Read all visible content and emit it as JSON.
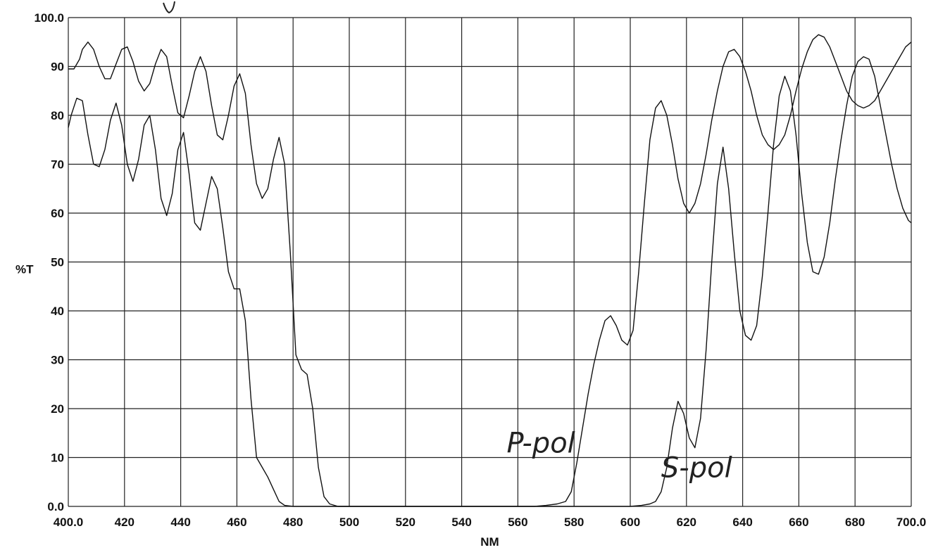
{
  "chart_data": {
    "type": "line",
    "xlabel": "NM",
    "ylabel": "%T",
    "xlim": [
      400,
      700
    ],
    "ylim": [
      0,
      100
    ],
    "grid": true,
    "x_ticks": [
      "400.0",
      "420",
      "440",
      "460",
      "480",
      "500",
      "520",
      "540",
      "560",
      "580",
      "600",
      "620",
      "640",
      "660",
      "680",
      "700.0"
    ],
    "y_ticks": [
      "0.0",
      "10",
      "20",
      "30",
      "40",
      "50",
      "60",
      "70",
      "80",
      "90",
      "100.0"
    ],
    "annotations": [
      {
        "text": "P-pol",
        "x": 556,
        "y": 11
      },
      {
        "text": "S-pol",
        "x": 611,
        "y": 6
      }
    ],
    "series": [
      {
        "name": "P-pol",
        "points": [
          [
            400,
            89.5
          ],
          [
            402,
            89.5
          ],
          [
            404,
            91.5
          ],
          [
            405,
            93.5
          ],
          [
            407,
            95
          ],
          [
            409,
            93.5
          ],
          [
            411,
            90
          ],
          [
            413,
            87.5
          ],
          [
            415,
            87.5
          ],
          [
            417,
            90.5
          ],
          [
            419,
            93.5
          ],
          [
            421,
            94
          ],
          [
            423,
            91
          ],
          [
            425,
            87
          ],
          [
            427,
            85
          ],
          [
            429,
            86.5
          ],
          [
            431,
            90.5
          ],
          [
            433,
            93.5
          ],
          [
            435,
            92
          ],
          [
            437,
            86
          ],
          [
            439,
            80.5
          ],
          [
            441,
            79.5
          ],
          [
            443,
            84
          ],
          [
            445,
            89
          ],
          [
            447,
            92
          ],
          [
            449,
            89
          ],
          [
            451,
            82
          ],
          [
            453,
            76
          ],
          [
            455,
            75
          ],
          [
            457,
            80
          ],
          [
            459,
            86
          ],
          [
            461,
            88.5
          ],
          [
            463,
            84.5
          ],
          [
            465,
            74
          ],
          [
            467,
            66
          ],
          [
            469,
            63
          ],
          [
            471,
            65
          ],
          [
            473,
            71
          ],
          [
            475,
            75.5
          ],
          [
            477,
            70
          ],
          [
            479,
            52
          ],
          [
            481,
            31
          ],
          [
            483,
            28
          ],
          [
            485,
            27
          ],
          [
            487,
            20
          ],
          [
            489,
            8
          ],
          [
            491,
            2
          ],
          [
            493,
            0.5
          ],
          [
            496,
            0
          ],
          [
            500,
            0
          ],
          [
            560,
            0
          ],
          [
            566,
            0
          ],
          [
            570,
            0.2
          ],
          [
            574,
            0.5
          ],
          [
            577,
            1
          ],
          [
            579,
            3
          ],
          [
            581,
            9
          ],
          [
            583,
            16
          ],
          [
            585,
            23
          ],
          [
            587,
            29
          ],
          [
            589,
            34
          ],
          [
            591,
            38
          ],
          [
            593,
            39
          ],
          [
            595,
            37
          ],
          [
            597,
            34
          ],
          [
            599,
            33
          ],
          [
            601,
            36
          ],
          [
            603,
            48
          ],
          [
            605,
            62
          ],
          [
            607,
            75
          ],
          [
            609,
            81.5
          ],
          [
            611,
            83
          ],
          [
            613,
            80
          ],
          [
            615,
            74
          ],
          [
            617,
            67
          ],
          [
            619,
            62
          ],
          [
            621,
            60
          ],
          [
            623,
            62
          ],
          [
            625,
            66
          ],
          [
            627,
            72
          ],
          [
            629,
            79
          ],
          [
            631,
            85
          ],
          [
            633,
            90
          ],
          [
            635,
            93
          ],
          [
            637,
            93.5
          ],
          [
            639,
            92
          ],
          [
            641,
            89
          ],
          [
            643,
            85
          ],
          [
            645,
            80
          ],
          [
            647,
            76
          ],
          [
            649,
            74
          ],
          [
            651,
            73
          ],
          [
            653,
            74
          ],
          [
            655,
            76
          ],
          [
            657,
            80
          ],
          [
            659,
            85
          ],
          [
            661,
            89.5
          ],
          [
            663,
            93
          ],
          [
            665,
            95.5
          ],
          [
            667,
            96.5
          ],
          [
            669,
            96
          ],
          [
            671,
            94
          ],
          [
            673,
            91
          ],
          [
            675,
            88
          ],
          [
            677,
            85
          ],
          [
            679,
            83
          ],
          [
            681,
            82
          ],
          [
            683,
            81.5
          ],
          [
            685,
            82
          ],
          [
            687,
            83
          ],
          [
            689,
            85
          ],
          [
            692,
            88
          ],
          [
            695,
            91
          ],
          [
            698,
            94
          ],
          [
            700,
            95
          ]
        ]
      },
      {
        "name": "S-pol",
        "points": [
          [
            400,
            77.5
          ],
          [
            401,
            80
          ],
          [
            403,
            83.5
          ],
          [
            405,
            83
          ],
          [
            407,
            76
          ],
          [
            409,
            70
          ],
          [
            411,
            69.5
          ],
          [
            413,
            73
          ],
          [
            415,
            79
          ],
          [
            417,
            82.5
          ],
          [
            419,
            78
          ],
          [
            421,
            70
          ],
          [
            423,
            66.5
          ],
          [
            425,
            71
          ],
          [
            427,
            78
          ],
          [
            429,
            80
          ],
          [
            431,
            73
          ],
          [
            433,
            63
          ],
          [
            435,
            59.5
          ],
          [
            437,
            64
          ],
          [
            439,
            73
          ],
          [
            441,
            76.5
          ],
          [
            443,
            68
          ],
          [
            445,
            58
          ],
          [
            447,
            56.5
          ],
          [
            449,
            62
          ],
          [
            451,
            67.5
          ],
          [
            453,
            65
          ],
          [
            455,
            57
          ],
          [
            457,
            48
          ],
          [
            459,
            44.5
          ],
          [
            461,
            44.5
          ],
          [
            463,
            38
          ],
          [
            465,
            22
          ],
          [
            467,
            10
          ],
          [
            469,
            8
          ],
          [
            471,
            6
          ],
          [
            473,
            3.5
          ],
          [
            475,
            1
          ],
          [
            477,
            0.2
          ],
          [
            480,
            0
          ],
          [
            500,
            0
          ],
          [
            600,
            0
          ],
          [
            604,
            0.2
          ],
          [
            607,
            0.5
          ],
          [
            609,
            1
          ],
          [
            611,
            3
          ],
          [
            613,
            8
          ],
          [
            615,
            16
          ],
          [
            617,
            21.5
          ],
          [
            619,
            19
          ],
          [
            621,
            14
          ],
          [
            623,
            12
          ],
          [
            625,
            18
          ],
          [
            627,
            32
          ],
          [
            629,
            50
          ],
          [
            631,
            66
          ],
          [
            633,
            73.5
          ],
          [
            635,
            65
          ],
          [
            637,
            52
          ],
          [
            639,
            40
          ],
          [
            641,
            35
          ],
          [
            643,
            34
          ],
          [
            645,
            37
          ],
          [
            647,
            47
          ],
          [
            649,
            60
          ],
          [
            651,
            74
          ],
          [
            653,
            84
          ],
          [
            655,
            88
          ],
          [
            657,
            85
          ],
          [
            659,
            76
          ],
          [
            661,
            64
          ],
          [
            663,
            54
          ],
          [
            665,
            48
          ],
          [
            667,
            47.5
          ],
          [
            669,
            51
          ],
          [
            671,
            58
          ],
          [
            673,
            67
          ],
          [
            675,
            75
          ],
          [
            677,
            82
          ],
          [
            679,
            88
          ],
          [
            681,
            91
          ],
          [
            683,
            92
          ],
          [
            685,
            91.5
          ],
          [
            687,
            88
          ],
          [
            689,
            82
          ],
          [
            691,
            76
          ],
          [
            693,
            70
          ],
          [
            695,
            65
          ],
          [
            697,
            61
          ],
          [
            699,
            58.5
          ],
          [
            700,
            58
          ]
        ]
      }
    ]
  }
}
